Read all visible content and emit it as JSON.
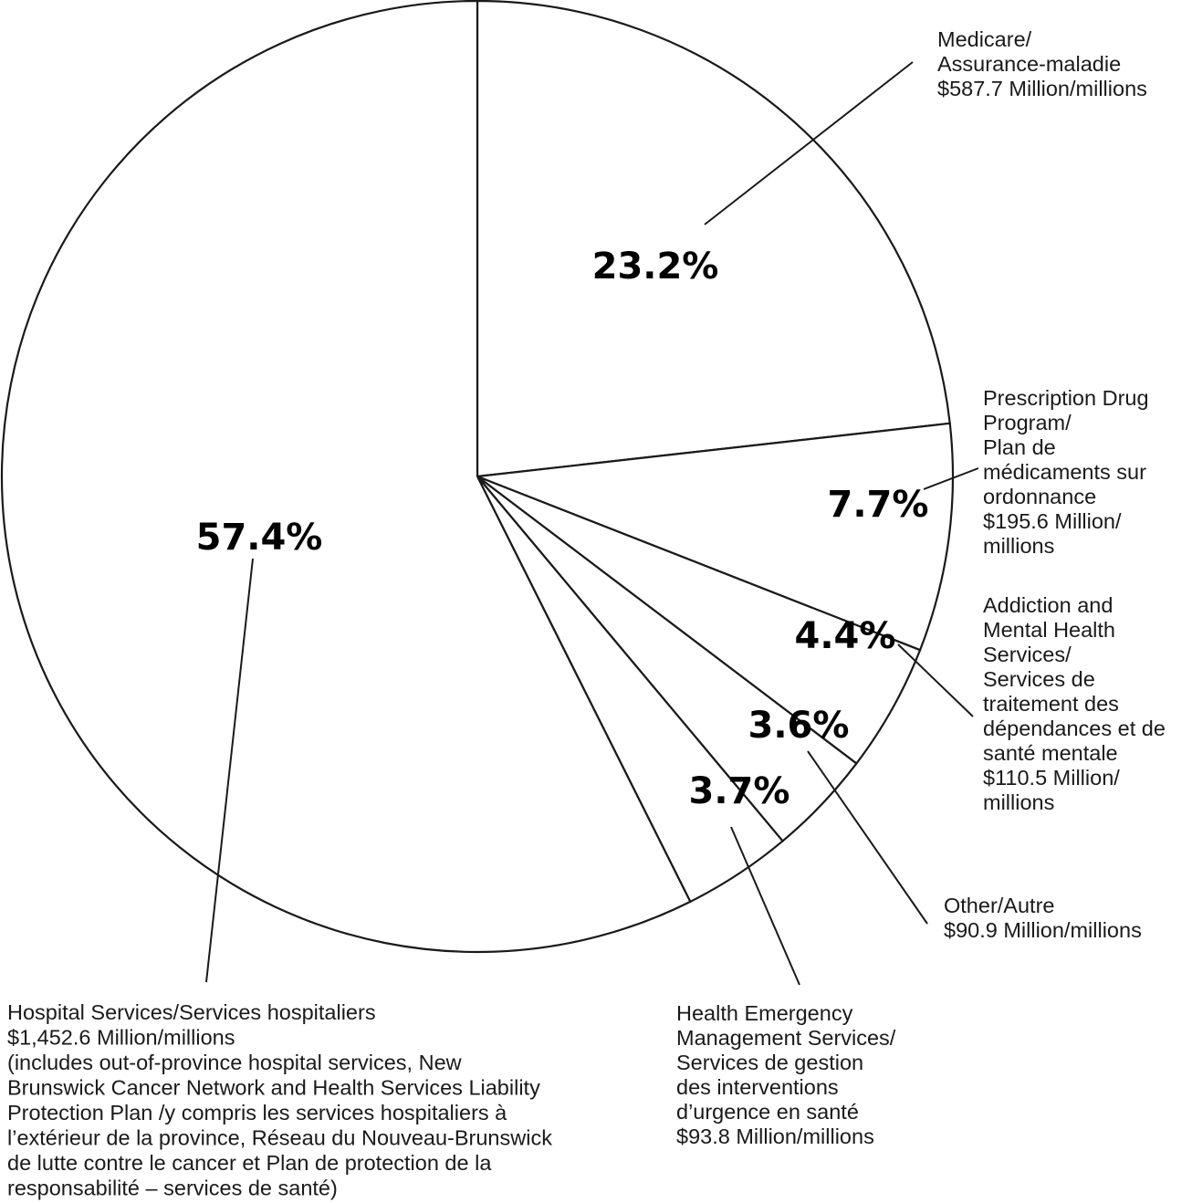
{
  "chart_data": {
    "type": "pie",
    "title": "",
    "start_angle_deg": 0,
    "direction": "clockwise",
    "slices": [
      {
        "label_lines": [
          "Medicare/",
          "Assurance-maladie",
          "$587.7 Million/millions"
        ],
        "value": 587.7,
        "percent_label": "23.2%"
      },
      {
        "label_lines": [
          "Prescription Drug",
          "Program/",
          "Plan de",
          "médicaments sur",
          "ordonnance",
          "$195.6 Million/",
          "millions"
        ],
        "value": 195.6,
        "percent_label": "7.7%"
      },
      {
        "label_lines": [
          "Addiction and",
          "Mental Health",
          "Services/",
          "Services de",
          "traitement des",
          "dépendances et de",
          "santé mentale",
          "$110.5 Million/",
          "millions"
        ],
        "value": 110.5,
        "percent_label": "4.4%"
      },
      {
        "label_lines": [
          "Other/Autre",
          "$90.9 Million/millions"
        ],
        "value": 90.9,
        "percent_label": "3.6%"
      },
      {
        "label_lines": [
          "Health Emergency",
          "Management Services/",
          "Services de gestion",
          "des interventions",
          "d’urgence en santé",
          "$93.8 Million/millions"
        ],
        "value": 93.8,
        "percent_label": "3.7%"
      },
      {
        "label_lines": [
          "Hospital Services/Services hospitaliers",
          "$1,452.6 Million/millions",
          "(includes out-of-province hospital services, New",
          "Brunswick Cancer Network and Health Services Liability",
          "Protection Plan /y compris les services hospitaliers à",
          "l’extérieur de la province, Réseau du Nouveau-Brunswick",
          "de lutte contre le cancer et Plan de protection de la",
          "responsabilité – services de santé)"
        ],
        "value": 1452.6,
        "percent_label": "57.4%"
      }
    ]
  }
}
